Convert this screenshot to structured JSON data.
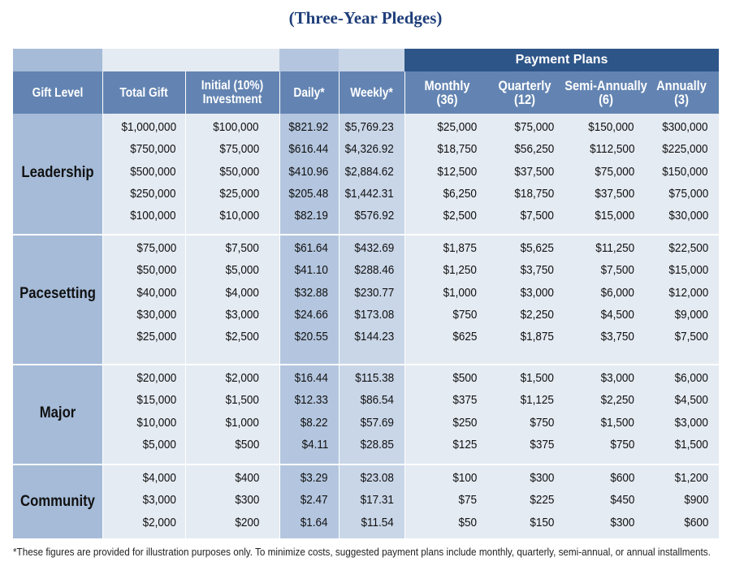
{
  "title": "(Three-Year Pledges)",
  "payment_plans_label": "Payment Plans",
  "headers": {
    "gift_level": "Gift Level",
    "total_gift": "Total Gift",
    "initial_l1": "Initial (10%)",
    "initial_l2": "Investment",
    "daily": "Daily*",
    "weekly": "Weekly*",
    "monthly_l1": "Monthly",
    "monthly_l2": "(36)",
    "quarterly_l1": "Quarterly",
    "quarterly_l2": "(12)",
    "semi_l1": "Semi-Annually",
    "semi_l2": "(6)",
    "annual_l1": "Annually",
    "annual_l2": "(3)"
  },
  "sections": [
    {
      "level": "Leadership",
      "rows": [
        [
          "$1,000,000",
          "$100,000",
          "$821.92",
          "$5,769.23",
          "$25,000",
          "$75,000",
          "$150,000",
          "$300,000"
        ],
        [
          "$750,000",
          "$75,000",
          "$616.44",
          "$4,326.92",
          "$18,750",
          "$56,250",
          "$112,500",
          "$225,000"
        ],
        [
          "$500,000",
          "$50,000",
          "$410.96",
          "$2,884.62",
          "$12,500",
          "$37,500",
          "$75,000",
          "$150,000"
        ],
        [
          "$250,000",
          "$25,000",
          "$205.48",
          "$1,442.31",
          "$6,250",
          "$18,750",
          "$37,500",
          "$75,000"
        ],
        [
          "$100,000",
          "$10,000",
          "$82.19",
          "$576.92",
          "$2,500",
          "$7,500",
          "$15,000",
          "$30,000"
        ]
      ]
    },
    {
      "level": "Pacesetting",
      "rows": [
        [
          "$75,000",
          "$7,500",
          "$61.64",
          "$432.69",
          "$1,875",
          "$5,625",
          "$11,250",
          "$22,500"
        ],
        [
          "$50,000",
          "$5,000",
          "$41.10",
          "$288.46",
          "$1,250",
          "$3,750",
          "$7,500",
          "$15,000"
        ],
        [
          "$40,000",
          "$4,000",
          "$32.88",
          "$230.77",
          "$1,000",
          "$3,000",
          "$6,000",
          "$12,000"
        ],
        [
          "$30,000",
          "$3,000",
          "$24.66",
          "$173.08",
          "$750",
          "$2,250",
          "$4,500",
          "$9,000"
        ],
        [
          "$25,000",
          "$2,500",
          "$20.55",
          "$144.23",
          "$625",
          "$1,875",
          "$3,750",
          "$7,500"
        ]
      ]
    },
    {
      "level": "Major",
      "rows": [
        [
          "$20,000",
          "$2,000",
          "$16.44",
          "$115.38",
          "$500",
          "$1,500",
          "$3,000",
          "$6,000"
        ],
        [
          "$15,000",
          "$1,500",
          "$12.33",
          "$86.54",
          "$375",
          "$1,125",
          "$2,250",
          "$4,500"
        ],
        [
          "$10,000",
          "$1,000",
          "$8.22",
          "$57.69",
          "$250",
          "$750",
          "$1,500",
          "$3,000"
        ],
        [
          "$5,000",
          "$500",
          "$4.11",
          "$28.85",
          "$125",
          "$375",
          "$750",
          "$1,500"
        ]
      ]
    },
    {
      "level": "Community",
      "rows": [
        [
          "$4,000",
          "$400",
          "$3.29",
          "$23.08",
          "$100",
          "$300",
          "$600",
          "$1,200"
        ],
        [
          "$3,000",
          "$300",
          "$2.47",
          "$17.31",
          "$75",
          "$225",
          "$450",
          "$900"
        ],
        [
          "$2,000",
          "$200",
          "$1.64",
          "$11.54",
          "$50",
          "$150",
          "$300",
          "$600"
        ]
      ]
    }
  ],
  "footnote": "*These figures are provided for illustration purposes only. To minimize costs, suggested payment plans include monthly, quarterly, semi-annual, or annual installments."
}
